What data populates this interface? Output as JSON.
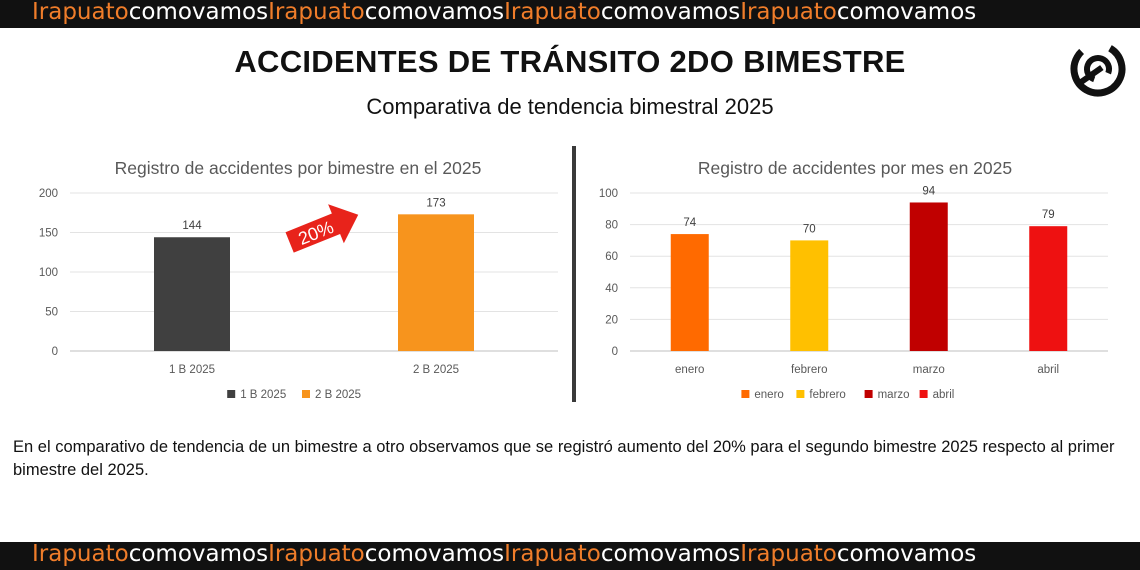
{
  "banner": {
    "word1": "Irapuato",
    "word2": "comovamos",
    "repeat": 4
  },
  "title": "ACCIDENTES DE TRÁNSITO 2DO BIMESTRE",
  "subtitle": "Comparativa de tendencia bimestral 2025",
  "arrow_label": "20%",
  "footnote": "En el comparativo de tendencia de un bimestre a otro observamos que se registró aumento del 20% para el segundo bimestre 2025 respecto al primer bimestre del 2025.",
  "colors": {
    "banner_bg": "#111111",
    "banner_accent": "#f07d2a",
    "arrow": "#e8231b"
  },
  "chart_data": [
    {
      "type": "bar",
      "title": "Registro de accidentes por bimestre en el 2025",
      "categories": [
        "1 B 2025",
        "2 B 2025"
      ],
      "values": [
        144,
        173
      ],
      "colors": [
        "#404040",
        "#f7941d"
      ],
      "legend": [
        "1 B 2025",
        "2 B 2025"
      ],
      "legend_position": "bottom",
      "ylim": [
        0,
        200
      ],
      "yticks": [
        0,
        50,
        100,
        150,
        200
      ],
      "grid": true
    },
    {
      "type": "bar",
      "title": "Registro de accidentes por mes en 2025",
      "categories": [
        "enero",
        "febrero",
        "marzo",
        "abril"
      ],
      "values": [
        74,
        70,
        94,
        79
      ],
      "colors": [
        "#ff6a00",
        "#ffc000",
        "#c00000",
        "#ee1111"
      ],
      "legend": [
        "enero",
        "febrero",
        "marzo",
        "abril"
      ],
      "legend_position": "bottom",
      "ylim": [
        0,
        100
      ],
      "yticks": [
        0,
        20,
        40,
        60,
        80,
        100
      ],
      "grid": true
    }
  ]
}
